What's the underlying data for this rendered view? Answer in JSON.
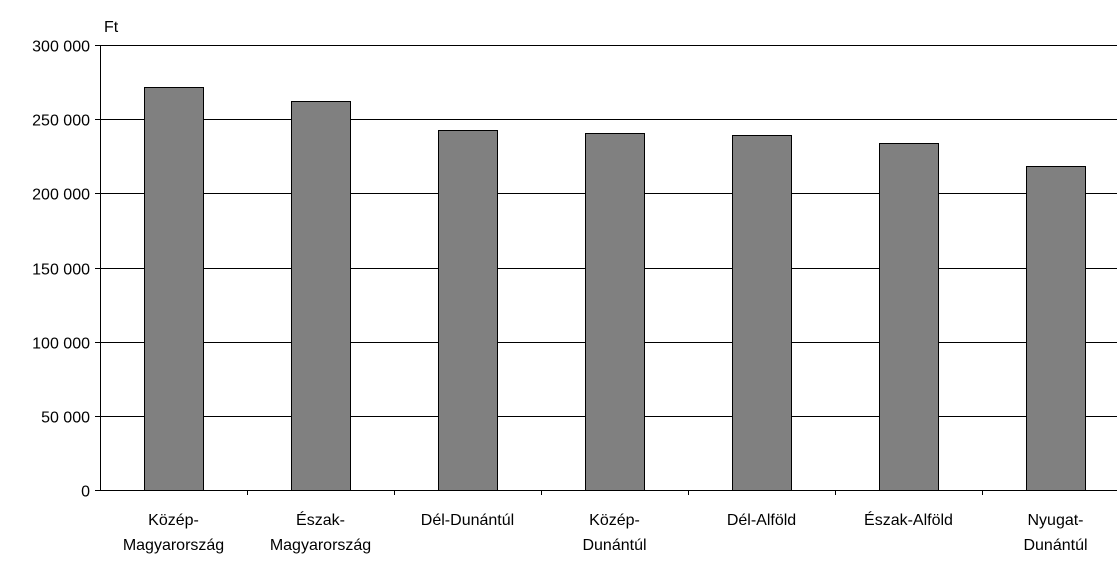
{
  "chart_data": {
    "type": "bar",
    "title": "",
    "xlabel": "",
    "ylabel": "Ft",
    "ylim": [
      0,
      300000
    ],
    "yticks": [
      0,
      50000,
      100000,
      150000,
      200000,
      250000,
      300000
    ],
    "ytick_labels": [
      "0",
      "50 000",
      "100 000",
      "150 000",
      "200 000",
      "250 000",
      "300 000"
    ],
    "grid": true,
    "legend": "none",
    "categories": [
      [
        "Közép-",
        "Magyarország"
      ],
      [
        "Észak-",
        "Magyarország"
      ],
      [
        "Dél-Dunántúl"
      ],
      [
        "Közép-",
        "Dunántúl"
      ],
      [
        "Dél-Alföld"
      ],
      [
        "Észak-Alföld"
      ],
      [
        "Nyugat-",
        "Dunántúl"
      ]
    ],
    "values": [
      271500,
      262500,
      243000,
      240500,
      239500,
      234000,
      218500
    ],
    "colors": {
      "bar_fill": "#808080",
      "bar_stroke": "#000000",
      "grid": "#000000",
      "axis": "#000000"
    }
  }
}
